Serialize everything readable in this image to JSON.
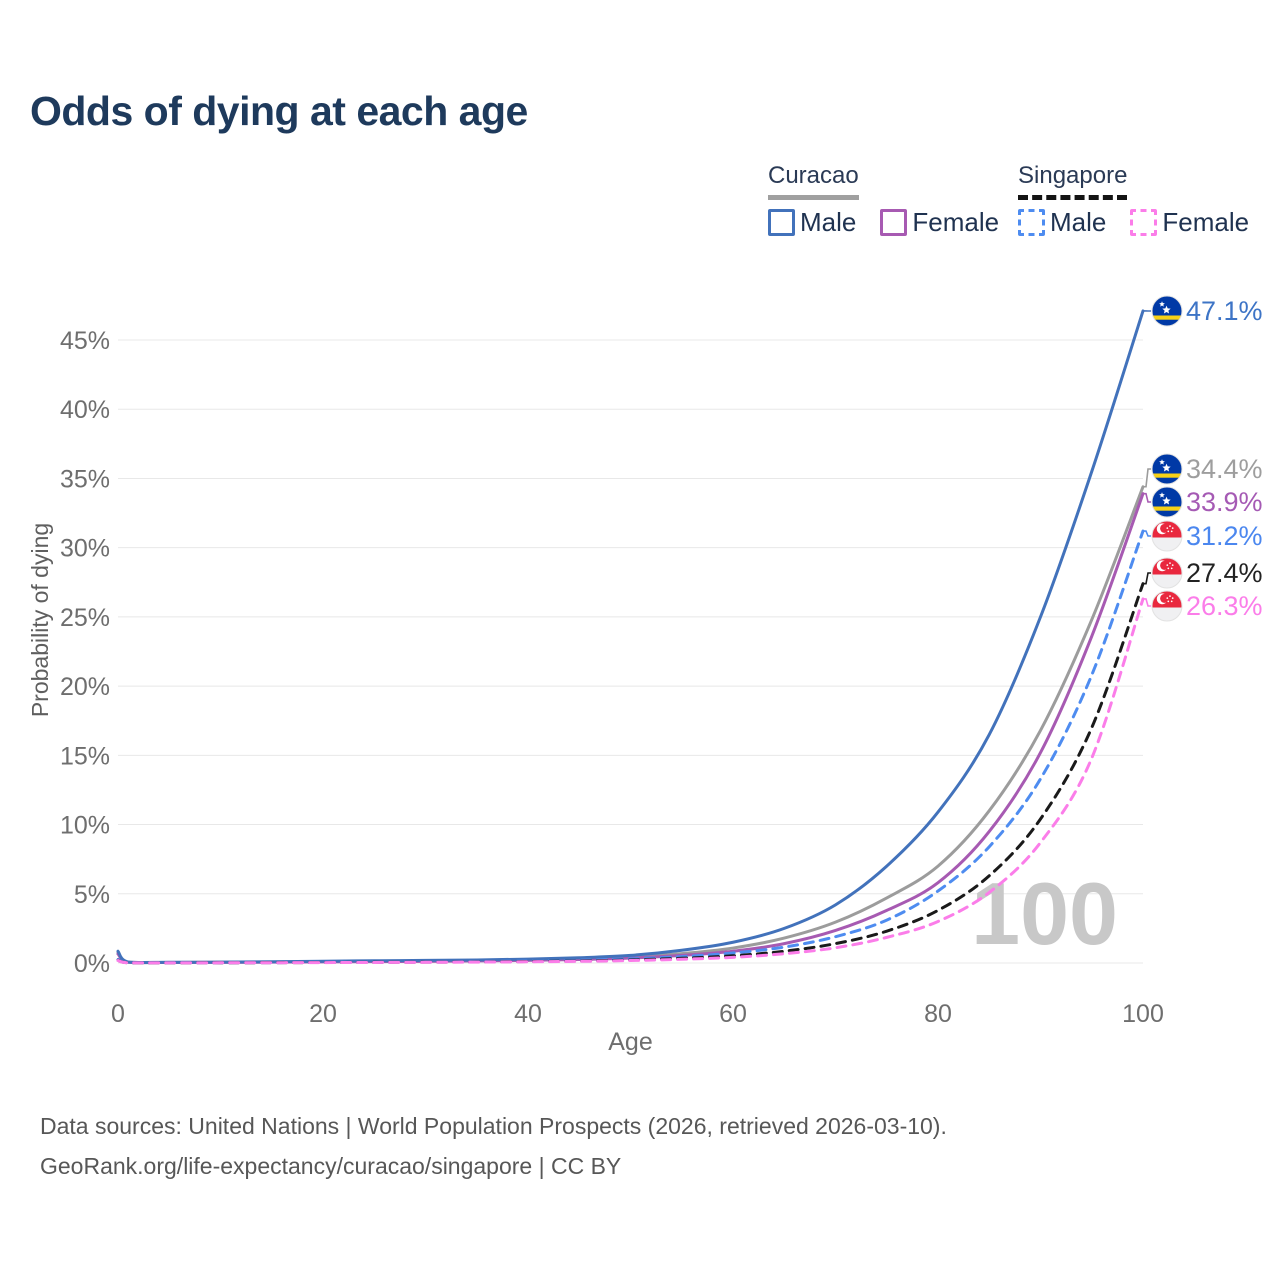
{
  "title": "Odds of dying at each age",
  "legend": {
    "groups": [
      {
        "label": "Curacao",
        "underline_color": "#a0a0a0",
        "dashed": false,
        "items": [
          {
            "label": "Male",
            "color": "#4272bb",
            "dashed": false
          },
          {
            "label": "Female",
            "color": "#a75ab2",
            "dashed": false
          }
        ]
      },
      {
        "label": "Singapore",
        "underline_color": "#141414",
        "dashed": true,
        "items": [
          {
            "label": "Male",
            "color": "#4e8cf0",
            "dashed": true
          },
          {
            "label": "Female",
            "color": "#fb7de9",
            "dashed": true
          }
        ]
      }
    ]
  },
  "watermark": "100",
  "footer": {
    "line1": "Data sources: United Nations | World Population Prospects (2026, retrieved 2026-03-10).",
    "line2": "GeoRank.org/life-expectancy/curacao/singapore | CC BY"
  },
  "chart_data": {
    "type": "line",
    "title": "Odds of dying at each age",
    "xlabel": "Age",
    "ylabel": "Probability of dying",
    "xlim": [
      0,
      100
    ],
    "ylim_percent": [
      0,
      47.5
    ],
    "grid": "horizontal",
    "x_ticks": [
      0,
      20,
      40,
      60,
      80,
      100
    ],
    "y_ticks": [
      "0%",
      "5%",
      "10%",
      "15%",
      "20%",
      "25%",
      "30%",
      "35%",
      "40%",
      "45%"
    ],
    "highlighted_age": "100",
    "series": [
      {
        "id": "curacao-male",
        "name": "Curacao Male",
        "country": "Curacao",
        "sex": "Male",
        "color": "#4272bb",
        "label_color": "#3d74c6",
        "dashed": false,
        "flag": "curacao",
        "end_label": "47.1%",
        "end_value_percent": 47.1,
        "points": [
          [
            0,
            0.85
          ],
          [
            1,
            0.07
          ],
          [
            5,
            0.05
          ],
          [
            10,
            0.06
          ],
          [
            15,
            0.09
          ],
          [
            20,
            0.13
          ],
          [
            25,
            0.16
          ],
          [
            30,
            0.19
          ],
          [
            35,
            0.22
          ],
          [
            40,
            0.28
          ],
          [
            45,
            0.38
          ],
          [
            50,
            0.55
          ],
          [
            55,
            0.92
          ],
          [
            60,
            1.5
          ],
          [
            65,
            2.5
          ],
          [
            70,
            4.2
          ],
          [
            75,
            7.0
          ],
          [
            80,
            10.9
          ],
          [
            85,
            16.5
          ],
          [
            90,
            25.0
          ],
          [
            95,
            35.5
          ],
          [
            100,
            47.1
          ]
        ]
      },
      {
        "id": "curacao-total",
        "name": "Curacao",
        "country": "Curacao",
        "sex": "Both",
        "color": "#9c9c9c",
        "label_color": "#9e9e9e",
        "dashed": false,
        "flag": "curacao",
        "end_label": "34.4%",
        "end_value_percent": 34.4,
        "points": [
          [
            0,
            0.75
          ],
          [
            1,
            0.06
          ],
          [
            5,
            0.04
          ],
          [
            10,
            0.05
          ],
          [
            15,
            0.07
          ],
          [
            20,
            0.1
          ],
          [
            25,
            0.12
          ],
          [
            30,
            0.15
          ],
          [
            35,
            0.18
          ],
          [
            40,
            0.23
          ],
          [
            45,
            0.3
          ],
          [
            50,
            0.44
          ],
          [
            55,
            0.68
          ],
          [
            60,
            1.08
          ],
          [
            65,
            1.8
          ],
          [
            70,
            2.95
          ],
          [
            75,
            4.7
          ],
          [
            80,
            7.0
          ],
          [
            85,
            11.0
          ],
          [
            90,
            16.8
          ],
          [
            95,
            24.8
          ],
          [
            100,
            34.4
          ]
        ]
      },
      {
        "id": "curacao-female",
        "name": "Curacao Female",
        "country": "Curacao",
        "sex": "Female",
        "color": "#a75ab2",
        "label_color": "#a55ab4",
        "dashed": false,
        "flag": "curacao",
        "end_label": "33.9%",
        "end_value_percent": 33.9,
        "points": [
          [
            0,
            0.65
          ],
          [
            1,
            0.05
          ],
          [
            5,
            0.04
          ],
          [
            10,
            0.045
          ],
          [
            15,
            0.06
          ],
          [
            20,
            0.08
          ],
          [
            25,
            0.1
          ],
          [
            30,
            0.12
          ],
          [
            35,
            0.15
          ],
          [
            40,
            0.19
          ],
          [
            45,
            0.25
          ],
          [
            50,
            0.36
          ],
          [
            55,
            0.55
          ],
          [
            60,
            0.85
          ],
          [
            65,
            1.4
          ],
          [
            70,
            2.35
          ],
          [
            75,
            3.8
          ],
          [
            80,
            5.8
          ],
          [
            85,
            9.5
          ],
          [
            90,
            15.2
          ],
          [
            95,
            23.6
          ],
          [
            100,
            33.9
          ]
        ]
      },
      {
        "id": "singapore-male",
        "name": "Singapore Male",
        "country": "Singapore",
        "sex": "Male",
        "color": "#4e8cf0",
        "label_color": "#4b87ef",
        "dashed": true,
        "flag": "singapore",
        "end_label": "31.2%",
        "end_value_percent": 31.2,
        "points": [
          [
            0,
            0.25
          ],
          [
            1,
            0.02
          ],
          [
            5,
            0.015
          ],
          [
            10,
            0.02
          ],
          [
            15,
            0.03
          ],
          [
            20,
            0.045
          ],
          [
            25,
            0.06
          ],
          [
            30,
            0.08
          ],
          [
            35,
            0.1
          ],
          [
            40,
            0.14
          ],
          [
            45,
            0.2
          ],
          [
            50,
            0.3
          ],
          [
            55,
            0.46
          ],
          [
            60,
            0.72
          ],
          [
            65,
            1.15
          ],
          [
            70,
            1.9
          ],
          [
            75,
            3.1
          ],
          [
            80,
            5.2
          ],
          [
            85,
            8.4
          ],
          [
            90,
            13.3
          ],
          [
            95,
            20.8
          ],
          [
            100,
            31.2
          ]
        ]
      },
      {
        "id": "singapore-total",
        "name": "Singapore",
        "country": "Singapore",
        "sex": "Both",
        "color": "#1a1a1a",
        "label_color": "#222222",
        "dashed": true,
        "flag": "singapore",
        "end_label": "27.4%",
        "end_value_percent": 27.4,
        "points": [
          [
            0,
            0.2
          ],
          [
            1,
            0.017
          ],
          [
            5,
            0.013
          ],
          [
            10,
            0.016
          ],
          [
            15,
            0.025
          ],
          [
            20,
            0.035
          ],
          [
            25,
            0.05
          ],
          [
            30,
            0.06
          ],
          [
            35,
            0.08
          ],
          [
            40,
            0.11
          ],
          [
            45,
            0.15
          ],
          [
            50,
            0.22
          ],
          [
            55,
            0.34
          ],
          [
            60,
            0.52
          ],
          [
            65,
            0.85
          ],
          [
            70,
            1.4
          ],
          [
            75,
            2.3
          ],
          [
            80,
            3.8
          ],
          [
            85,
            6.3
          ],
          [
            90,
            10.4
          ],
          [
            95,
            17.0
          ],
          [
            100,
            27.4
          ]
        ]
      },
      {
        "id": "singapore-female",
        "name": "Singapore Female",
        "country": "Singapore",
        "sex": "Female",
        "color": "#fb7de9",
        "label_color": "#fb7de9",
        "dashed": true,
        "flag": "singapore",
        "end_label": "26.3%",
        "end_value_percent": 26.3,
        "points": [
          [
            0,
            0.18
          ],
          [
            1,
            0.015
          ],
          [
            5,
            0.012
          ],
          [
            10,
            0.014
          ],
          [
            15,
            0.02
          ],
          [
            20,
            0.03
          ],
          [
            25,
            0.04
          ],
          [
            30,
            0.05
          ],
          [
            35,
            0.065
          ],
          [
            40,
            0.09
          ],
          [
            45,
            0.12
          ],
          [
            50,
            0.18
          ],
          [
            55,
            0.27
          ],
          [
            60,
            0.41
          ],
          [
            65,
            0.67
          ],
          [
            70,
            1.1
          ],
          [
            75,
            1.85
          ],
          [
            80,
            3.0
          ],
          [
            85,
            5.1
          ],
          [
            90,
            8.7
          ],
          [
            95,
            14.8
          ],
          [
            100,
            26.3
          ]
        ]
      }
    ]
  }
}
